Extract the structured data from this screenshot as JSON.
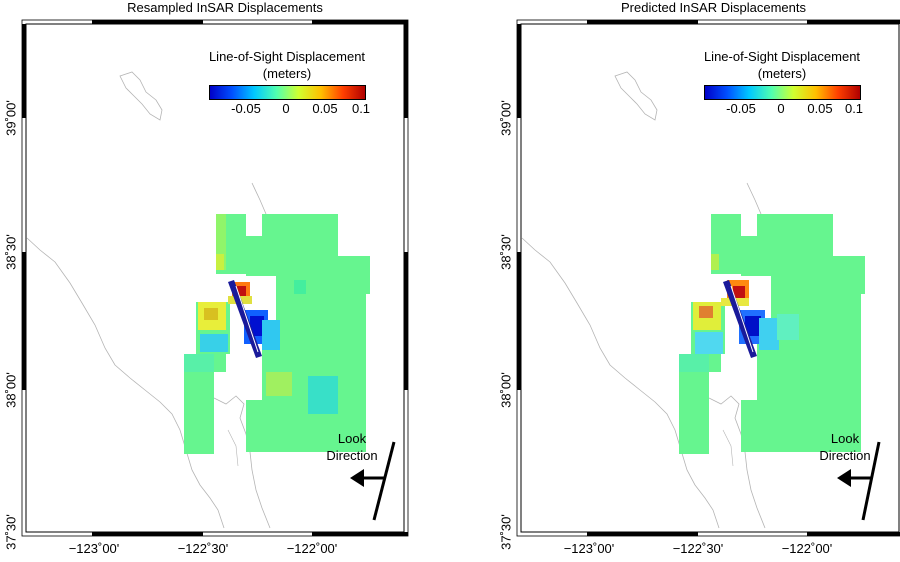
{
  "panels": [
    {
      "title": "Resampled InSAR Displacements"
    },
    {
      "title": "Predicted InSAR Displacements"
    }
  ],
  "colorbar": {
    "title_line1": "Line-of-Sight Displacement",
    "title_line2": "(meters)",
    "ticks": [
      "-0.05",
      "0",
      "0.05",
      "0.1"
    ],
    "colors": [
      "#0000c8",
      "#0050ff",
      "#00c8ff",
      "#50ffb0",
      "#d0ff30",
      "#ffc000",
      "#ff4000",
      "#b00000"
    ]
  },
  "axes": {
    "longitude_labels": [
      "−123˚00'",
      "−122˚30'",
      "−122˚00'"
    ],
    "latitude_labels": [
      "39˚00'",
      "38˚30'",
      "38˚00'",
      "37˚30'"
    ]
  },
  "look_direction": {
    "line1": "Look",
    "line2": "Direction"
  },
  "colors": {
    "background_field": "#66f58f",
    "fault": "#1a1a9a",
    "coast": "#b4b4b4"
  }
}
